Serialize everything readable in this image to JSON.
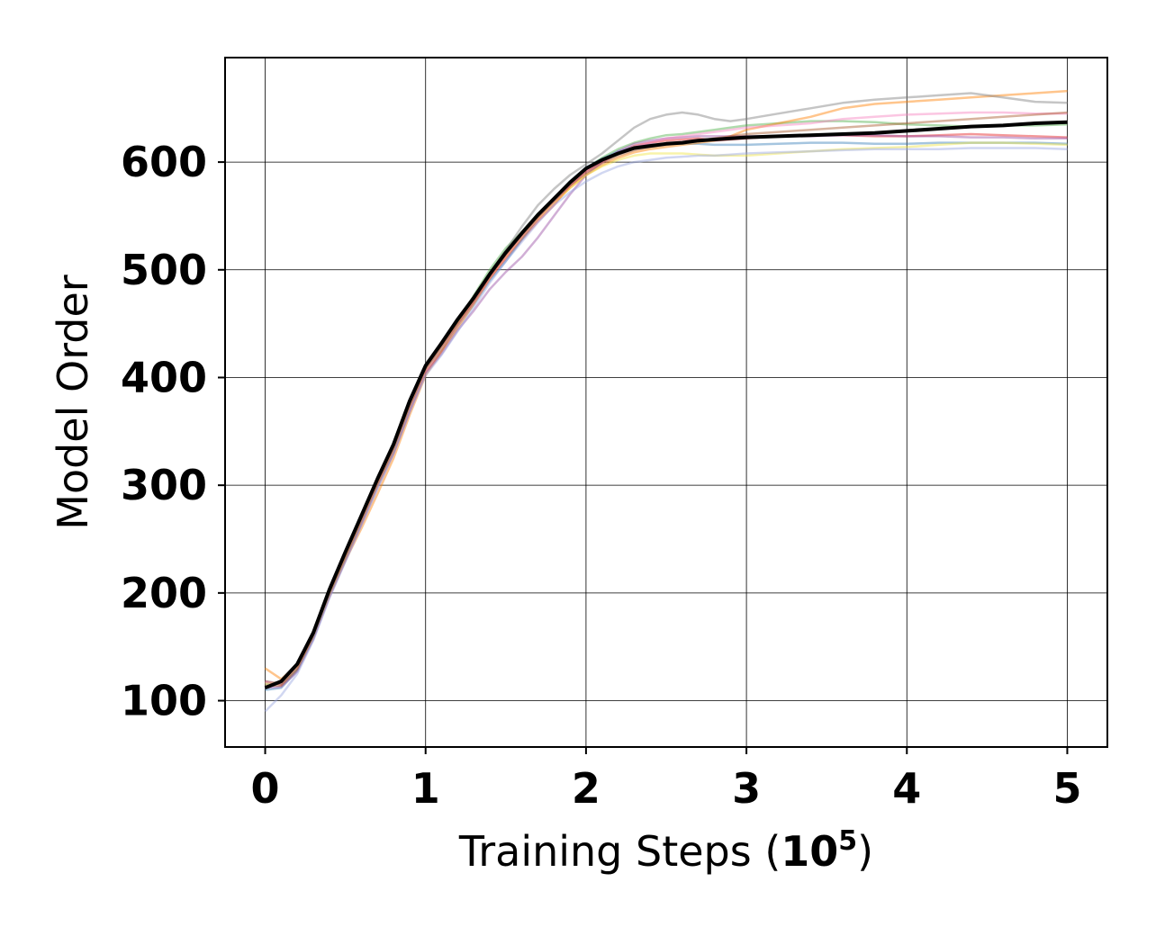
{
  "chart_data": {
    "type": "line",
    "title": "",
    "xlabel": {
      "prefix": "Training Steps (",
      "base": "10",
      "exponent": "5",
      "suffix": ")"
    },
    "ylabel": "Model Order",
    "xlim": [
      -0.25,
      5.25
    ],
    "ylim": [
      57,
      697
    ],
    "xticks": [
      0,
      1,
      2,
      3,
      4,
      5
    ],
    "xtick_labels": [
      "0",
      "1",
      "2",
      "3",
      "4",
      "5"
    ],
    "yticks": [
      100,
      200,
      300,
      400,
      500,
      600
    ],
    "ytick_labels": [
      "100",
      "200",
      "300",
      "400",
      "500",
      "600"
    ],
    "grid": true,
    "legend": "none",
    "x": [
      0,
      0.1,
      0.2,
      0.3,
      0.4,
      0.5,
      0.6,
      0.7,
      0.8,
      0.9,
      1.0,
      1.1,
      1.2,
      1.3,
      1.4,
      1.5,
      1.6,
      1.7,
      1.8,
      1.9,
      2.0,
      2.1,
      2.2,
      2.3,
      2.4,
      2.5,
      2.6,
      2.7,
      2.8,
      2.9,
      3.0,
      3.2,
      3.4,
      3.6,
      3.8,
      4.0,
      4.2,
      4.4,
      4.6,
      4.8,
      5.0
    ],
    "series": [
      {
        "color": "#e41a1c",
        "values": [
          118,
          115,
          132,
          160,
          200,
          232,
          265,
          300,
          330,
          370,
          405,
          425,
          450,
          470,
          492,
          510,
          528,
          545,
          560,
          578,
          592,
          600,
          608,
          615,
          618,
          620,
          621,
          622,
          620,
          621,
          622,
          624,
          625,
          625,
          624,
          624,
          625,
          626,
          625,
          624,
          623
        ]
      },
      {
        "color": "#4daf4a",
        "values": [
          116,
          116,
          130,
          162,
          203,
          236,
          270,
          305,
          335,
          378,
          410,
          432,
          452,
          476,
          500,
          520,
          535,
          552,
          566,
          582,
          594,
          604,
          612,
          618,
          622,
          625,
          626,
          628,
          630,
          632,
          634,
          636,
          638,
          638,
          637,
          635,
          634,
          633,
          634,
          634,
          635
        ]
      },
      {
        "color": "#377eb8",
        "values": [
          110,
          112,
          128,
          158,
          198,
          232,
          266,
          300,
          331,
          371,
          408,
          426,
          448,
          468,
          490,
          508,
          528,
          548,
          566,
          582,
          595,
          603,
          610,
          614,
          616,
          617,
          617,
          617,
          616,
          616,
          616,
          617,
          618,
          618,
          617,
          617,
          618,
          618,
          618,
          618,
          617
        ]
      },
      {
        "color": "#ff7f00",
        "values": [
          130,
          120,
          133,
          160,
          197,
          230,
          260,
          292,
          325,
          365,
          402,
          424,
          446,
          468,
          492,
          512,
          530,
          547,
          562,
          576,
          588,
          597,
          604,
          609,
          612,
          614,
          616,
          618,
          620,
          624,
          630,
          636,
          642,
          650,
          654,
          656,
          658,
          660,
          662,
          664,
          666
        ]
      },
      {
        "color": "#984ea3",
        "values": [
          112,
          113,
          127,
          157,
          196,
          230,
          264,
          298,
          330,
          368,
          404,
          422,
          444,
          462,
          482,
          498,
          512,
          530,
          550,
          570,
          588,
          600,
          610,
          617,
          620,
          622,
          623,
          624,
          624,
          624,
          624,
          624,
          624,
          625,
          625,
          624,
          624,
          623,
          623,
          622,
          622
        ]
      },
      {
        "color": "#7f7f7f",
        "values": [
          118,
          116,
          131,
          160,
          200,
          234,
          268,
          302,
          334,
          374,
          409,
          430,
          452,
          474,
          497,
          518,
          540,
          560,
          575,
          588,
          598,
          608,
          620,
          632,
          640,
          644,
          646,
          644,
          640,
          638,
          640,
          645,
          650,
          655,
          658,
          660,
          662,
          664,
          660,
          656,
          655
        ]
      },
      {
        "color": "#f0e442",
        "values": [
          116,
          117,
          131,
          160,
          199,
          233,
          267,
          300,
          332,
          372,
          407,
          428,
          450,
          472,
          496,
          516,
          533,
          548,
          562,
          576,
          588,
          596,
          602,
          606,
          608,
          608,
          608,
          607,
          606,
          606,
          606,
          608,
          610,
          612,
          613,
          614,
          616,
          618,
          618,
          617,
          616
        ]
      },
      {
        "color": "#f781bf",
        "values": [
          117,
          116,
          131,
          161,
          201,
          235,
          268,
          301,
          333,
          372,
          407,
          428,
          449,
          470,
          493,
          513,
          531,
          548,
          563,
          578,
          591,
          600,
          608,
          614,
          618,
          622,
          624,
          626,
          628,
          630,
          632,
          634,
          636,
          640,
          642,
          644,
          645,
          646,
          646,
          645,
          645
        ]
      },
      {
        "color": "#a65628",
        "values": [
          114,
          114,
          129,
          159,
          199,
          233,
          267,
          301,
          333,
          373,
          408,
          429,
          450,
          471,
          494,
          514,
          532,
          549,
          564,
          578,
          590,
          599,
          606,
          611,
          614,
          616,
          618,
          620,
          622,
          624,
          626,
          628,
          630,
          632,
          634,
          636,
          638,
          640,
          642,
          644,
          646
        ]
      },
      {
        "color": "#9aa6e0",
        "values": [
          90,
          105,
          125,
          156,
          195,
          229,
          263,
          297,
          329,
          368,
          402,
          421,
          443,
          465,
          488,
          508,
          526,
          544,
          560,
          572,
          582,
          590,
          596,
          600,
          602,
          604,
          605,
          606,
          606,
          607,
          608,
          609,
          610,
          611,
          612,
          612,
          612,
          613,
          613,
          613,
          612
        ]
      }
    ],
    "mean_series": {
      "color": "#000000",
      "values": [
        112,
        118,
        134,
        163,
        203,
        238,
        272,
        306,
        338,
        378,
        411,
        432,
        454,
        474,
        496,
        516,
        534,
        551,
        566,
        581,
        594,
        602,
        608,
        613,
        615,
        617,
        618,
        620,
        621,
        622,
        623,
        624,
        625,
        626,
        627,
        629,
        631,
        633,
        634,
        636,
        637
      ]
    }
  }
}
